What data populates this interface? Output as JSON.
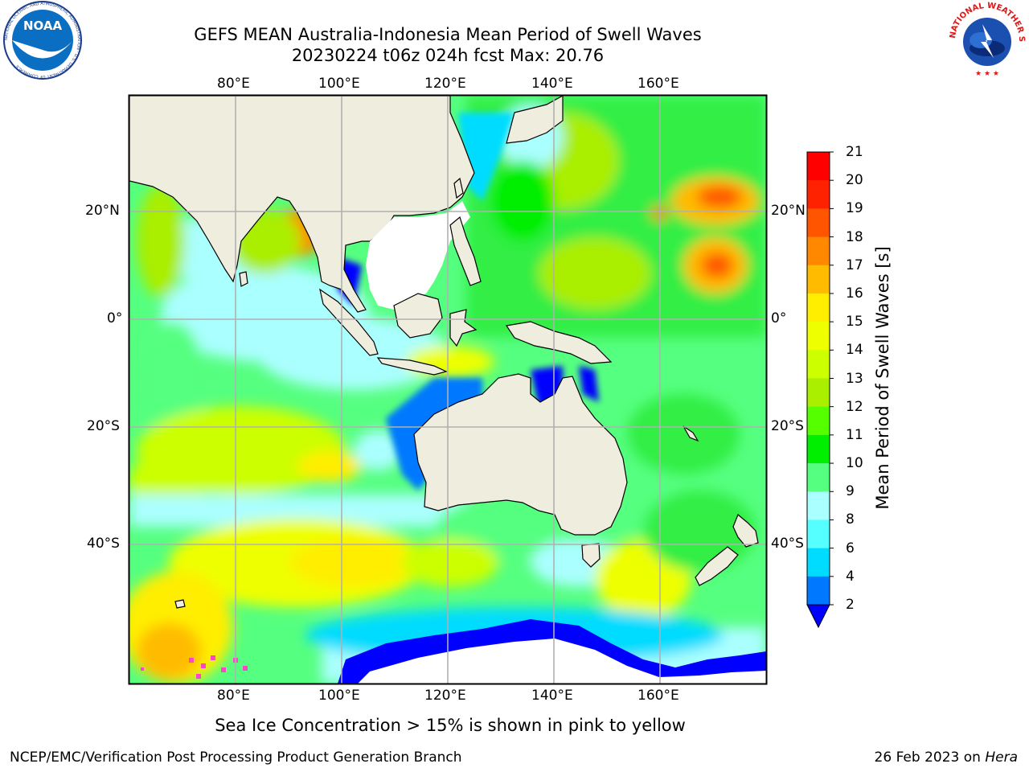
{
  "header": {
    "title_line1": "GEFS MEAN Australia-Indonesia Mean Period of Swell Waves",
    "title_line2": "20230224 t06z 024h fcst   Max: 20.76"
  },
  "map": {
    "lon_ticks_top": [
      "80°E",
      "100°E",
      "120°E",
      "140°E",
      "160°E"
    ],
    "lon_ticks_bottom": [
      "80°E",
      "100°E",
      "120°E",
      "140°E",
      "160°E"
    ],
    "lat_ticks_left": [
      "20°N",
      "0°",
      "20°S",
      "40°S"
    ],
    "lat_ticks_right": [
      "20°N",
      "0°",
      "20°S",
      "40°S"
    ],
    "colors": {
      "land": "#efedde",
      "ice_free_ocean_white": "#ffffff",
      "gridline": "#b0b0b0"
    }
  },
  "colorbar": {
    "label": "Mean Period of Swell Waves [s]",
    "levels": [
      "2",
      "4",
      "6",
      "8",
      "9",
      "10",
      "11",
      "12",
      "13",
      "14",
      "15",
      "16",
      "17",
      "18",
      "19",
      "20",
      "21"
    ],
    "colors": [
      "#0000ff",
      "#0078ff",
      "#00dcff",
      "#55ffff",
      "#aaffff",
      "#55ff7f",
      "#00ee00",
      "#55ff00",
      "#aaee00",
      "#ccff00",
      "#eeff00",
      "#ffee00",
      "#ffbb00",
      "#ff8800",
      "#ff5500",
      "#ff2200",
      "#ff0000"
    ]
  },
  "footer": {
    "note": "Sea Ice Concentration > 15% is shown in pink to yellow",
    "credit_left": "NCEP/EMC/Verification Post Processing Product Generation Branch",
    "credit_right_date": "26 Feb 2023 on ",
    "credit_right_host": "Hera"
  },
  "logos": {
    "left": "noaa-logo",
    "right": "national-weather-service-logo",
    "left_ring_text": "NATIONAL OCEANIC AND ATMOSPHERIC ADMINISTRATION · U.S. DEPARTMENT OF COMMERCE",
    "left_center_text": "NOAA",
    "right_ring_text": "NATIONAL WEATHER SERVICE"
  }
}
